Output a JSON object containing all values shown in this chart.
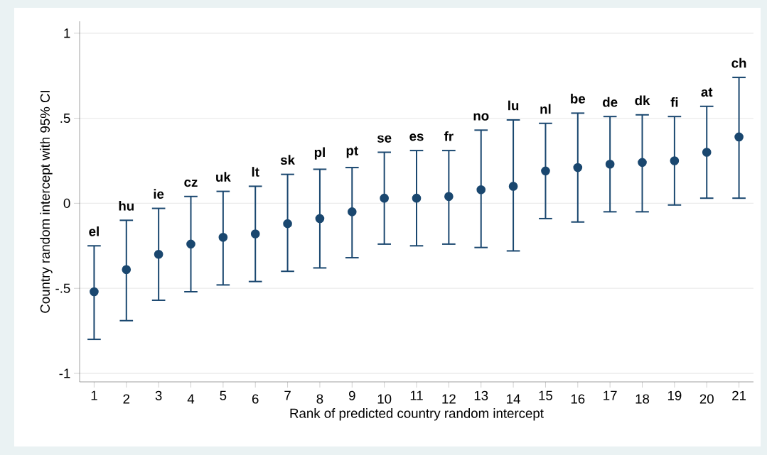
{
  "chart_data": {
    "type": "scatter",
    "xlabel": "Rank of predicted country random intercept",
    "ylabel": "Country random intercept with 95% CI",
    "categories": [
      "1",
      "2",
      "3",
      "4",
      "5",
      "6",
      "7",
      "8",
      "9",
      "10",
      "11",
      "12",
      "13",
      "14",
      "15",
      "16",
      "17",
      "18",
      "19",
      "20",
      "21"
    ],
    "values": [
      -0.52,
      -0.39,
      -0.3,
      -0.24,
      -0.2,
      -0.18,
      -0.12,
      -0.09,
      -0.05,
      0.03,
      0.03,
      0.04,
      0.08,
      0.1,
      0.19,
      0.21,
      0.23,
      0.24,
      0.25,
      0.3,
      0.39
    ],
    "errors": [
      [
        -0.8,
        -0.25
      ],
      [
        -0.69,
        -0.1
      ],
      [
        -0.57,
        -0.03
      ],
      [
        -0.52,
        0.04
      ],
      [
        -0.48,
        0.07
      ],
      [
        -0.46,
        0.1
      ],
      [
        -0.4,
        0.17
      ],
      [
        -0.38,
        0.2
      ],
      [
        -0.32,
        0.21
      ],
      [
        -0.24,
        0.3
      ],
      [
        -0.25,
        0.31
      ],
      [
        -0.24,
        0.31
      ],
      [
        -0.26,
        0.43
      ],
      [
        -0.28,
        0.49
      ],
      [
        -0.09,
        0.47
      ],
      [
        -0.11,
        0.53
      ],
      [
        -0.05,
        0.51
      ],
      [
        -0.05,
        0.52
      ],
      [
        -0.01,
        0.51
      ],
      [
        0.03,
        0.57
      ],
      [
        0.03,
        0.74
      ]
    ],
    "annotations": [
      {
        "text": "el",
        "x": "1",
        "y": -0.25
      },
      {
        "text": "hu",
        "x": "2",
        "y": -0.1
      },
      {
        "text": "ie",
        "x": "3",
        "y": -0.03
      },
      {
        "text": "cz",
        "x": "4",
        "y": 0.04
      },
      {
        "text": "uk",
        "x": "5",
        "y": 0.07
      },
      {
        "text": "lt",
        "x": "6",
        "y": 0.1
      },
      {
        "text": "sk",
        "x": "7",
        "y": 0.17
      },
      {
        "text": "pl",
        "x": "8",
        "y": 0.2
      },
      {
        "text": "pt",
        "x": "9",
        "y": 0.21
      },
      {
        "text": "se",
        "x": "10",
        "y": 0.3
      },
      {
        "text": "es",
        "x": "11",
        "y": 0.31
      },
      {
        "text": "fr",
        "x": "12",
        "y": 0.31
      },
      {
        "text": "no",
        "x": "13",
        "y": 0.43
      },
      {
        "text": "lu",
        "x": "14",
        "y": 0.49
      },
      {
        "text": "nl",
        "x": "15",
        "y": 0.47
      },
      {
        "text": "be",
        "x": "16",
        "y": 0.53
      },
      {
        "text": "de",
        "x": "17",
        "y": 0.51
      },
      {
        "text": "dk",
        "x": "18",
        "y": 0.52
      },
      {
        "text": "fi",
        "x": "19",
        "y": 0.51
      },
      {
        "text": "at",
        "x": "20",
        "y": 0.57
      },
      {
        "text": "ch",
        "x": "21",
        "y": 0.74
      }
    ],
    "color": "#1a476f",
    "ylim": [
      -1.05,
      1.07
    ],
    "yticks": [
      {
        "value": -1,
        "label": "-1"
      },
      {
        "value": -0.5,
        "label": "-.5"
      },
      {
        "value": 0,
        "label": "0"
      },
      {
        "value": 0.5,
        "label": ".5"
      },
      {
        "value": 1,
        "label": "1"
      }
    ],
    "grid": "y"
  }
}
